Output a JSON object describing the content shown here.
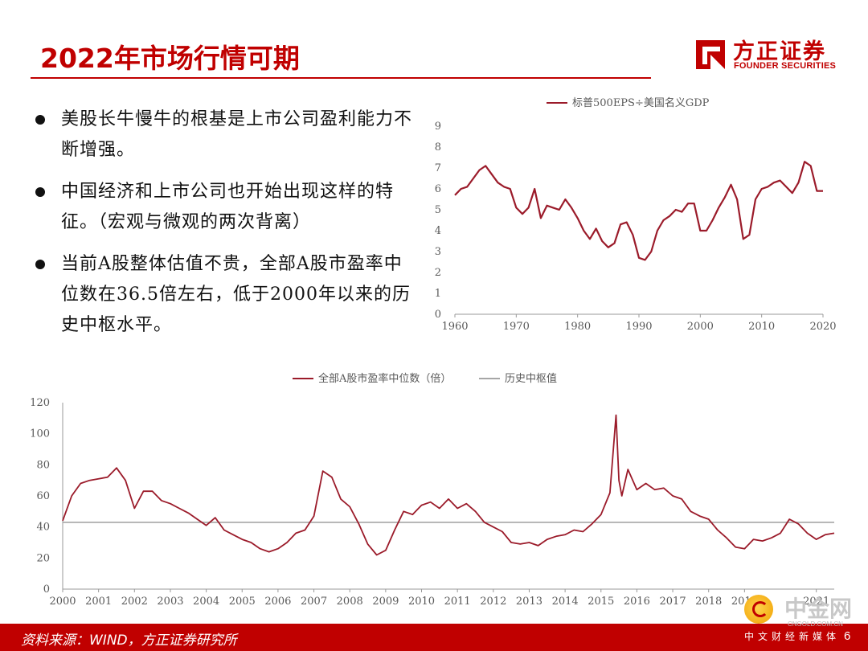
{
  "header": {
    "title": "2022年市场行情可期",
    "logo_cn": "方正证券",
    "logo_en": "FOUNDER SECURITIES"
  },
  "bullets": [
    "美股长牛慢牛的根基是上市公司盈利能力不断增强。",
    "中国经济和上市公司也开始出现这样的特征。（宏观与微观的两次背离）",
    "当前A股整体估值不贵，全部A股市盈率中位数在36.5倍左右，低于2000年以来的历史中枢水平。"
  ],
  "footer": {
    "source": "资料来源：WIND，方正证券研究所",
    "page_number": "6"
  },
  "watermark": {
    "cn": "中金网",
    "url": "CNGOLD.COM.CN",
    "sub": "中文财经新媒体"
  },
  "colors": {
    "accent": "#c00000",
    "series": "#9b1b2a",
    "reference": "#a6a6a6"
  },
  "chart_data": [
    {
      "type": "line",
      "legend": [
        "标普500EPS÷美国名义GDP"
      ],
      "legend_position": "top",
      "xlim": [
        1960,
        2020
      ],
      "ylim": [
        0,
        9
      ],
      "x_ticks": [
        1960,
        1970,
        1980,
        1990,
        2000,
        2010,
        2020
      ],
      "y_ticks": [
        0,
        1,
        2,
        3,
        4,
        5,
        6,
        7,
        8,
        9
      ],
      "grid": false,
      "series": [
        {
          "name": "标普500EPS÷美国名义GDP",
          "color": "#9b1b2a",
          "x": [
            1960,
            1961,
            1962,
            1963,
            1964,
            1965,
            1966,
            1967,
            1968,
            1969,
            1970,
            1971,
            1972,
            1973,
            1974,
            1975,
            1976,
            1977,
            1978,
            1979,
            1980,
            1981,
            1982,
            1983,
            1984,
            1985,
            1986,
            1987,
            1988,
            1989,
            1990,
            1991,
            1992,
            1993,
            1994,
            1995,
            1996,
            1997,
            1998,
            1999,
            2000,
            2001,
            2002,
            2003,
            2004,
            2005,
            2006,
            2007,
            2008,
            2009,
            2010,
            2011,
            2012,
            2013,
            2014,
            2015,
            2016,
            2017,
            2018,
            2019,
            2020
          ],
          "y": [
            5.7,
            6.0,
            6.1,
            6.5,
            6.9,
            7.1,
            6.7,
            6.3,
            6.1,
            6.0,
            5.1,
            4.8,
            5.1,
            6.0,
            4.6,
            5.2,
            5.1,
            5.0,
            5.5,
            5.1,
            4.6,
            4.0,
            3.6,
            4.1,
            3.5,
            3.2,
            3.4,
            4.3,
            4.4,
            3.8,
            2.7,
            2.6,
            3.0,
            4.0,
            4.5,
            4.7,
            5.0,
            4.9,
            5.3,
            5.3,
            4.0,
            4.0,
            4.5,
            5.1,
            5.6,
            6.2,
            5.5,
            3.6,
            3.8,
            5.5,
            6.0,
            6.1,
            6.3,
            6.4,
            6.1,
            5.8,
            6.3,
            7.3,
            7.1,
            5.9,
            5.9
          ]
        }
      ]
    },
    {
      "type": "line",
      "legend": [
        "全部A股市盈率中位数（倍）",
        "历史中枢值"
      ],
      "legend_position": "top",
      "xlim": [
        2000,
        2021.5
      ],
      "ylim": [
        0,
        120
      ],
      "x_ticks": [
        2000,
        2001,
        2002,
        2003,
        2004,
        2005,
        2006,
        2007,
        2008,
        2009,
        2010,
        2011,
        2012,
        2013,
        2014,
        2015,
        2016,
        2017,
        2018,
        2019,
        2021
      ],
      "y_ticks": [
        0,
        20,
        40,
        60,
        80,
        100,
        120
      ],
      "grid": false,
      "series": [
        {
          "name": "全部A股市盈率中位数（倍）",
          "color": "#9b1b2a",
          "x": [
            2000.0,
            2000.25,
            2000.5,
            2000.75,
            2001.0,
            2001.25,
            2001.5,
            2001.75,
            2002.0,
            2002.25,
            2002.5,
            2002.75,
            2003.0,
            2003.25,
            2003.5,
            2003.75,
            2004.0,
            2004.25,
            2004.5,
            2004.75,
            2005.0,
            2005.25,
            2005.5,
            2005.75,
            2006.0,
            2006.25,
            2006.5,
            2006.75,
            2007.0,
            2007.25,
            2007.5,
            2007.75,
            2008.0,
            2008.25,
            2008.5,
            2008.75,
            2009.0,
            2009.25,
            2009.5,
            2009.75,
            2010.0,
            2010.25,
            2010.5,
            2010.75,
            2011.0,
            2011.25,
            2011.5,
            2011.75,
            2012.0,
            2012.25,
            2012.5,
            2012.75,
            2013.0,
            2013.25,
            2013.5,
            2013.75,
            2014.0,
            2014.25,
            2014.5,
            2014.75,
            2015.0,
            2015.25,
            2015.42,
            2015.5,
            2015.58,
            2015.75,
            2016.0,
            2016.25,
            2016.5,
            2016.75,
            2017.0,
            2017.25,
            2017.5,
            2017.75,
            2018.0,
            2018.25,
            2018.5,
            2018.75,
            2019.0,
            2019.25,
            2019.5,
            2019.75,
            2020.0,
            2020.25,
            2020.5,
            2020.75,
            2021.0,
            2021.25,
            2021.5
          ],
          "y": [
            44,
            60,
            68,
            70,
            71,
            72,
            78,
            70,
            52,
            63,
            63,
            57,
            55,
            52,
            49,
            45,
            41,
            46,
            38,
            35,
            32,
            30,
            26,
            24,
            26,
            30,
            36,
            38,
            47,
            76,
            72,
            58,
            53,
            42,
            29,
            22,
            25,
            38,
            50,
            48,
            54,
            56,
            52,
            58,
            52,
            55,
            50,
            43,
            40,
            37,
            30,
            29,
            30,
            28,
            32,
            34,
            35,
            38,
            37,
            42,
            48,
            62,
            112,
            70,
            60,
            77,
            64,
            68,
            64,
            65,
            60,
            58,
            50,
            47,
            45,
            38,
            33,
            27,
            26,
            32,
            31,
            33,
            36,
            45,
            42,
            36,
            32,
            35,
            36
          ]
        },
        {
          "name": "历史中枢值",
          "color": "#a6a6a6",
          "x": [
            2000,
            2021.5
          ],
          "y": [
            43,
            43
          ]
        }
      ]
    }
  ]
}
